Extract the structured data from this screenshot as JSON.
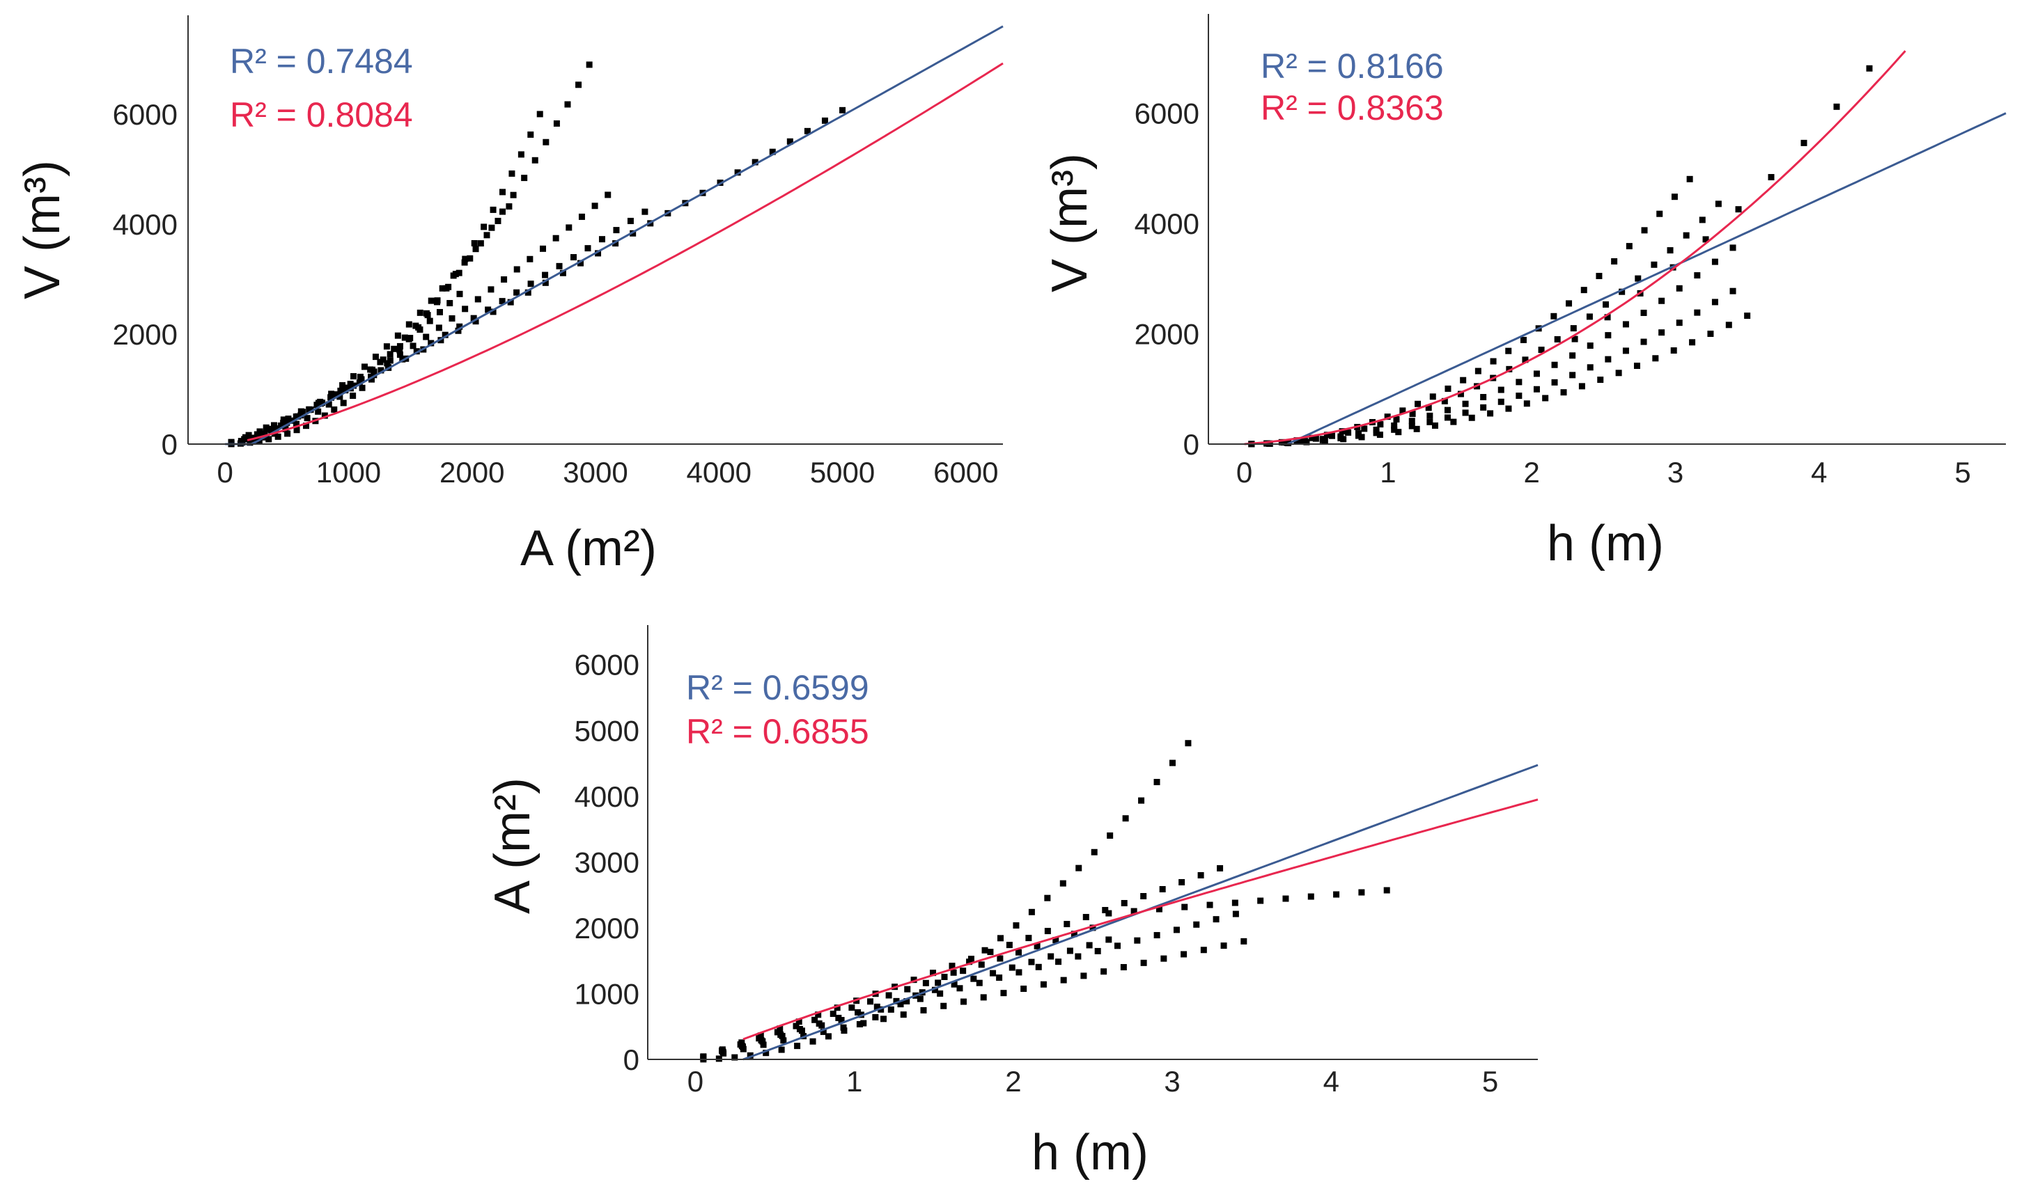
{
  "chart_data": [
    {
      "id": "va",
      "type": "scatter",
      "xlabel": "A (m²)",
      "ylabel": "V (m³)",
      "xlim": [
        -300,
        6300
      ],
      "ylim": [
        0,
        7800
      ],
      "xticks": [
        0,
        1000,
        2000,
        3000,
        4000,
        5000,
        6000
      ],
      "xtick_labels": [
        "0",
        "1000",
        "2000",
        "3000",
        "4000",
        "5000",
        "6000"
      ],
      "yticks": [
        0,
        2000,
        4000,
        6000
      ],
      "ytick_labels": [
        "0",
        "2000",
        "4000",
        "6000"
      ],
      "annotations": [
        {
          "text": "R² = 0.7484",
          "color": "#4a6aa5"
        },
        {
          "text": "R² = 0.8084",
          "color": "#e8274f"
        }
      ],
      "fits": [
        {
          "name": "linear",
          "color": "#3b5b92",
          "kind": "poly",
          "coef": [
            -275,
            1.25
          ],
          "xrange": [
            0,
            6300
          ]
        },
        {
          "name": "power",
          "color": "#e8274f",
          "kind": "power",
          "coef": [
            0.0885,
            1.288
          ],
          "xrange": [
            180,
            6300
          ]
        }
      ],
      "series": [
        {
          "kind": "power",
          "k": 0.000333,
          "p": 2.13,
          "x0": 50,
          "x1": 2550,
          "n": 34
        },
        {
          "kind": "power",
          "k": 0.00392,
          "p": 1.8,
          "x0": 50,
          "x1": 2950,
          "n": 34
        },
        {
          "kind": "power",
          "k": 0.0211,
          "p": 1.58,
          "x0": 50,
          "x1": 2300,
          "n": 26
        },
        {
          "kind": "power",
          "k": 0.0446,
          "p": 1.46,
          "x0": 50,
          "x1": 1900,
          "n": 24
        },
        {
          "kind": "power",
          "k": 0.121,
          "p": 1.31,
          "x0": 50,
          "x1": 3100,
          "n": 30
        },
        {
          "kind": "power",
          "k": 0.312,
          "p": 1.17,
          "x0": 50,
          "x1": 3400,
          "n": 30
        },
        {
          "kind": "power",
          "k": 0.476,
          "p": 1.11,
          "x0": 50,
          "x1": 5000,
          "n": 36
        }
      ]
    },
    {
      "id": "vh",
      "type": "scatter",
      "xlabel": "h (m)",
      "ylabel": "V (m³)",
      "xlim": [
        -0.25,
        5.3
      ],
      "ylim": [
        0,
        7800
      ],
      "xticks": [
        0,
        1,
        2,
        3,
        4,
        5
      ],
      "xtick_labels": [
        "0",
        "1",
        "2",
        "3",
        "4",
        "5"
      ],
      "yticks": [
        0,
        2000,
        4000,
        6000
      ],
      "ytick_labels": [
        "0",
        "2000",
        "4000",
        "6000"
      ],
      "annotations": [
        {
          "text": "R² = 0.8166",
          "color": "#4a6aa5"
        },
        {
          "text": "R² = 0.8363",
          "color": "#e8274f"
        }
      ],
      "fits": [
        {
          "name": "linear",
          "color": "#3b5b92",
          "kind": "poly",
          "coef": [
            -360,
            1200
          ],
          "xrange": [
            0.3,
            5.3
          ]
        },
        {
          "name": "polynomial",
          "color": "#e8274f",
          "kind": "poly",
          "coef": [
            0,
            170,
            300
          ],
          "xrange": [
            0,
            4.6
          ]
        }
      ],
      "series": [
        {
          "kind": "power",
          "k": 500,
          "p": 2.0,
          "x0": 0.05,
          "x1": 3.1,
          "n": 30
        },
        {
          "kind": "power",
          "k": 400,
          "p": 2.0,
          "x0": 0.05,
          "x1": 3.3,
          "n": 30
        },
        {
          "kind": "power",
          "k": 308,
          "p": 2.0,
          "x0": 0.05,
          "x1": 3.4,
          "n": 28
        },
        {
          "kind": "power",
          "k": 240,
          "p": 2.0,
          "x0": 0.05,
          "x1": 3.4,
          "n": 28
        },
        {
          "kind": "power",
          "k": 190,
          "p": 2.0,
          "x0": 0.05,
          "x1": 3.5,
          "n": 28
        },
        {
          "kind": "power",
          "k": 360,
          "p": 2.0,
          "x0": 2.3,
          "x1": 4.35,
          "n": 10
        }
      ]
    },
    {
      "id": "ah",
      "type": "scatter",
      "xlabel": "h (m)",
      "ylabel": "A (m²)",
      "xlim": [
        -0.3,
        5.3
      ],
      "ylim": [
        0,
        6600
      ],
      "xticks": [
        0,
        1,
        2,
        3,
        4,
        5
      ],
      "xtick_labels": [
        "0",
        "1",
        "2",
        "3",
        "4",
        "5"
      ],
      "yticks": [
        0,
        1000,
        2000,
        3000,
        4000,
        5000,
        6000
      ],
      "ytick_labels": [
        "0",
        "1000",
        "2000",
        "3000",
        "4000",
        "5000",
        "6000"
      ],
      "annotations": [
        {
          "text": "R² = 0.6599",
          "color": "#4a6aa5"
        },
        {
          "text": "R² = 0.6855",
          "color": "#e8274f"
        }
      ],
      "fits": [
        {
          "name": "linear",
          "color": "#3b5b92",
          "kind": "poly",
          "coef": [
            -270,
            895
          ],
          "xrange": [
            0.3,
            5.3
          ]
        },
        {
          "name": "power",
          "color": "#e8274f",
          "kind": "power",
          "coef": [
            895,
            0.89
          ],
          "xrange": [
            0.3,
            5.3
          ]
        }
      ],
      "series": [
        {
          "kind": "power",
          "k": 500,
          "p": 2.0,
          "x0": 0.05,
          "x1": 3.1,
          "n": 32
        },
        {
          "kind": "poly",
          "coef": [
            0,
            800
          ],
          "x0": 0.05,
          "x1": 2.5,
          "n": 22
        },
        {
          "kind": "poly",
          "coef": [
            0,
            880
          ],
          "x0": 0.05,
          "x1": 3.3,
          "n": 28
        },
        {
          "kind": "poly",
          "coef": [
            0,
            650
          ],
          "x0": 0.05,
          "x1": 3.4,
          "n": 28
        },
        {
          "kind": "poly",
          "coef": [
            0,
            520
          ],
          "x0": 0.05,
          "x1": 3.45,
          "n": 28
        },
        {
          "kind": "poly",
          "coef": [
            0,
            700
          ],
          "x0": 0.05,
          "x1": 2.6,
          "n": 22
        },
        {
          "kind": "poly",
          "coef": [
            1700,
            200
          ],
          "x0": 2.6,
          "x1": 4.35,
          "n": 12
        }
      ]
    }
  ]
}
